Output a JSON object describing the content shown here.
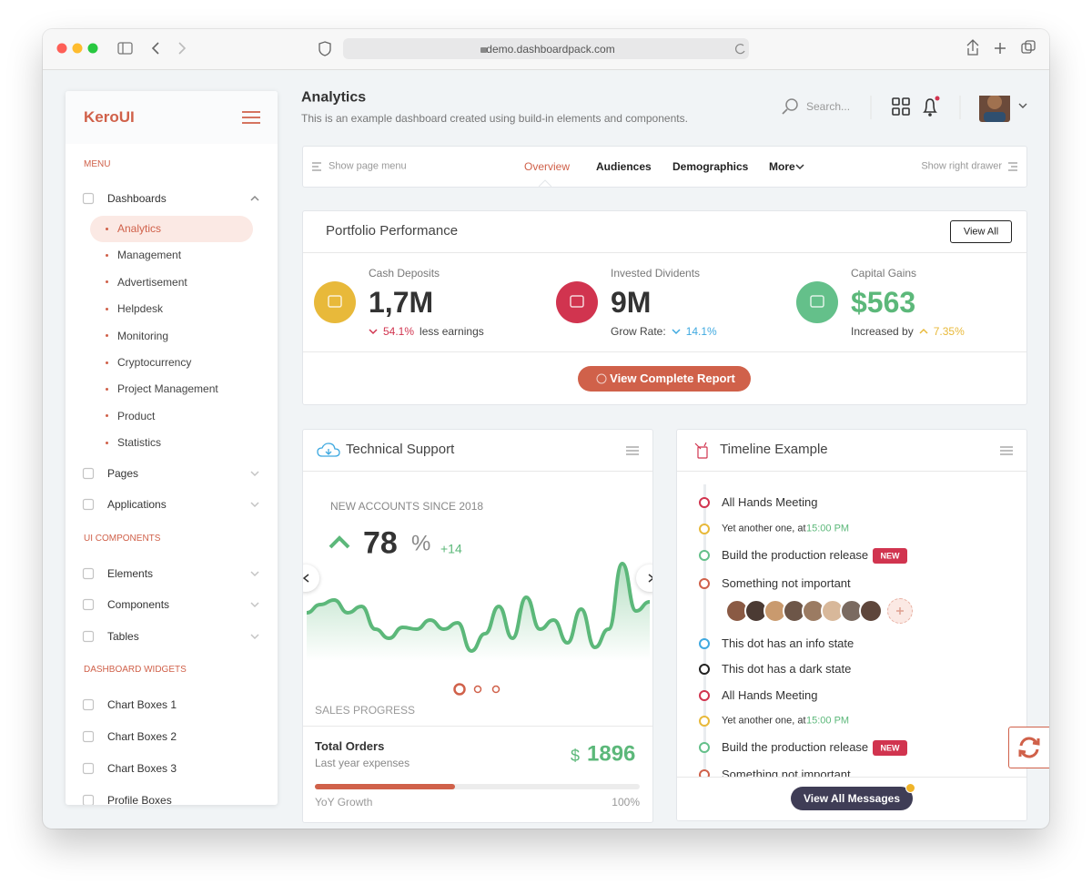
{
  "browser": {
    "url": "demo.dashboardpack.com"
  },
  "sidebar": {
    "logo": "KeroUI",
    "sections": [
      {
        "heading": "MENU",
        "items": [
          {
            "label": "Dashboards",
            "children": [
              "Analytics",
              "Management",
              "Advertisement",
              "Helpdesk",
              "Monitoring",
              "Cryptocurrency",
              "Project Management",
              "Product",
              "Statistics"
            ]
          },
          {
            "label": "Pages"
          },
          {
            "label": "Applications"
          }
        ]
      },
      {
        "heading": "UI COMPONENTS",
        "items": [
          {
            "label": "Elements"
          },
          {
            "label": "Components"
          },
          {
            "label": "Tables"
          }
        ]
      },
      {
        "heading": "DASHBOARD WIDGETS",
        "items": [
          {
            "label": "Chart Boxes 1"
          },
          {
            "label": "Chart Boxes 2"
          },
          {
            "label": "Chart Boxes 3"
          },
          {
            "label": "Profile Boxes"
          }
        ]
      }
    ]
  },
  "header": {
    "title": "Analytics",
    "subtitle": "This is an example dashboard created using build-in elements and components.",
    "search": "Search..."
  },
  "tabs": {
    "left": "Show page menu",
    "items": [
      "Overview",
      "Audiences",
      "Demographics",
      "More"
    ],
    "right": "Show right drawer"
  },
  "portfolio": {
    "title": "Portfolio Performance",
    "button": "View All",
    "stats": [
      {
        "label": "Cash Deposits",
        "value": "1,7M",
        "change": "54.1%",
        "note": "less earnings",
        "color": "#e8b93a",
        "change_color": "#d1344f"
      },
      {
        "label": "Invested Dividents",
        "value": "9M",
        "note": "Grow Rate:",
        "change": "14.1%",
        "color": "#d1344f",
        "change_color": "#3fa9e0"
      },
      {
        "label": "Capital Gains",
        "value": "$563",
        "note": "Increased by",
        "change": "7.35%",
        "color": "#64c08a",
        "change_color": "#e8b93a"
      }
    ],
    "report_button": "View Complete Report"
  },
  "support": {
    "title": "Technical Support",
    "kicker": "NEW ACCOUNTS SINCE 2018",
    "value": "78",
    "unit": "%",
    "delta": "+14",
    "chart": {
      "type": "line",
      "color": "#5cb87a",
      "values": [
        53,
        62,
        67,
        53,
        60,
        35,
        25,
        37,
        35,
        45,
        35,
        42,
        11,
        30,
        60,
        25,
        70,
        35,
        45,
        20,
        57,
        15,
        35,
        107,
        55,
        65
      ]
    },
    "section": "SALES PROGRESS",
    "orders_title": "Total Orders",
    "orders_sub": "Last year expenses",
    "currency": "$",
    "orders_value": "1896",
    "progress": 43,
    "progress_label": "YoY Growth",
    "progress_max": "100%"
  },
  "timeline": {
    "title": "Timeline Example",
    "items": [
      {
        "title": "All Hands Meeting",
        "color": "#d1344f"
      },
      {
        "title": "Yet another one, at",
        "time": "15:00 PM",
        "color": "#e8b93a"
      },
      {
        "title": "Build the production release",
        "badge": "NEW",
        "color": "#64c08a"
      },
      {
        "title": "Something not important",
        "color": "#d0614a"
      },
      {
        "title": "This dot has an info state",
        "color": "#3fa9e0"
      },
      {
        "title": "This dot has a dark state",
        "color": "#222222"
      },
      {
        "title": "All Hands Meeting",
        "color": "#d1344f"
      },
      {
        "title": "Yet another one, at",
        "time": "15:00 PM",
        "color": "#e8b93a"
      },
      {
        "title": "Build the production release",
        "badge": "NEW",
        "color": "#64c08a"
      },
      {
        "title": "Something not important",
        "color": "#d0614a"
      }
    ],
    "button": "View All Messages"
  }
}
